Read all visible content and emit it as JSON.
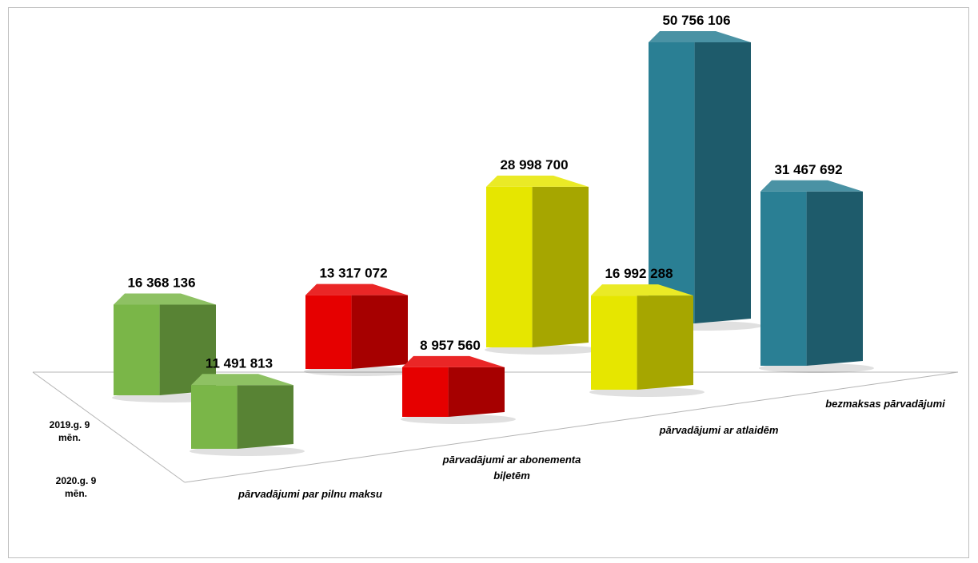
{
  "chart_data": {
    "type": "bar",
    "title": "",
    "xlabel": "",
    "ylabel": "",
    "grid": false,
    "legend": "none",
    "categories": [
      "pārvadājumi par pilnu maksu",
      [
        "pārvadājumi ar abonementa",
        "biļetēm"
      ],
      "pārvadājumi ar atlaidēm",
      "bezmaksas pārvadājumi"
    ],
    "depth_labels": [
      [
        "2019.g. 9",
        "mēn."
      ],
      [
        "2020.g. 9",
        "mēn."
      ]
    ],
    "series": [
      {
        "name": "2019.g. 9 mēn.",
        "values": [
          16368136,
          13317072,
          28998700,
          50756106
        ],
        "value_labels": [
          "16 368 136",
          "13 317 072",
          "28 998 700",
          "50 756 106"
        ]
      },
      {
        "name": "2020.g. 9 mēn.",
        "values": [
          11491813,
          8957560,
          16992288,
          31467692
        ],
        "value_labels": [
          "11 491 813",
          "8 957 560",
          "16 992 288",
          "31 467 692"
        ]
      }
    ],
    "category_colors": [
      "#7ab648",
      "#e60000",
      "#e6e600",
      "#2a7f94"
    ]
  }
}
